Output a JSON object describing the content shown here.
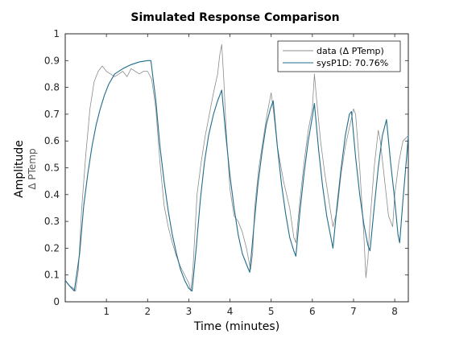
{
  "chart_data": {
    "type": "line",
    "title": "Simulated Response Comparison",
    "xlabel": "Time (minutes)",
    "ylabel": "Amplitude",
    "ylabel_unit": "Δ PTemp",
    "xlim": [
      0,
      8.33
    ],
    "ylim": [
      0,
      1
    ],
    "xticks": [
      1,
      2,
      3,
      4,
      5,
      6,
      7,
      8
    ],
    "yticks": [
      0,
      0.1,
      0.2,
      0.3,
      0.4,
      0.5,
      0.6,
      0.7,
      0.8,
      0.9,
      1
    ],
    "grid": false,
    "legend_position": "top-right",
    "colors": {
      "data": "#8c8c8c",
      "sysP1D": "#1f6d8c"
    },
    "series": [
      {
        "name": "data (Δ PTemp)",
        "points": [
          [
            0,
            0.08
          ],
          [
            0.1,
            0.06
          ],
          [
            0.2,
            0.05
          ],
          [
            0.25,
            0.04
          ],
          [
            0.32,
            0.12
          ],
          [
            0.4,
            0.35
          ],
          [
            0.5,
            0.55
          ],
          [
            0.6,
            0.72
          ],
          [
            0.7,
            0.82
          ],
          [
            0.8,
            0.86
          ],
          [
            0.9,
            0.88
          ],
          [
            1.0,
            0.86
          ],
          [
            1.1,
            0.85
          ],
          [
            1.2,
            0.84
          ],
          [
            1.3,
            0.85
          ],
          [
            1.4,
            0.86
          ],
          [
            1.5,
            0.84
          ],
          [
            1.6,
            0.87
          ],
          [
            1.7,
            0.86
          ],
          [
            1.8,
            0.85
          ],
          [
            1.9,
            0.86
          ],
          [
            2.0,
            0.86
          ],
          [
            2.1,
            0.83
          ],
          [
            2.2,
            0.72
          ],
          [
            2.3,
            0.52
          ],
          [
            2.4,
            0.36
          ],
          [
            2.5,
            0.28
          ],
          [
            2.6,
            0.22
          ],
          [
            2.7,
            0.17
          ],
          [
            2.8,
            0.13
          ],
          [
            2.9,
            0.1
          ],
          [
            3.0,
            0.07
          ],
          [
            3.05,
            0.04
          ],
          [
            3.1,
            0.12
          ],
          [
            3.2,
            0.4
          ],
          [
            3.3,
            0.52
          ],
          [
            3.4,
            0.62
          ],
          [
            3.5,
            0.7
          ],
          [
            3.6,
            0.78
          ],
          [
            3.7,
            0.85
          ],
          [
            3.75,
            0.92
          ],
          [
            3.8,
            0.96
          ],
          [
            3.85,
            0.83
          ],
          [
            3.9,
            0.66
          ],
          [
            4.0,
            0.42
          ],
          [
            4.1,
            0.32
          ],
          [
            4.2,
            0.3
          ],
          [
            4.3,
            0.26
          ],
          [
            4.4,
            0.2
          ],
          [
            4.5,
            0.12
          ],
          [
            4.55,
            0.18
          ],
          [
            4.6,
            0.35
          ],
          [
            4.7,
            0.5
          ],
          [
            4.8,
            0.6
          ],
          [
            4.9,
            0.7
          ],
          [
            5.0,
            0.78
          ],
          [
            5.05,
            0.72
          ],
          [
            5.15,
            0.58
          ],
          [
            5.3,
            0.45
          ],
          [
            5.45,
            0.35
          ],
          [
            5.55,
            0.24
          ],
          [
            5.6,
            0.22
          ],
          [
            5.7,
            0.38
          ],
          [
            5.8,
            0.52
          ],
          [
            5.9,
            0.64
          ],
          [
            6.0,
            0.72
          ],
          [
            6.05,
            0.85
          ],
          [
            6.1,
            0.76
          ],
          [
            6.2,
            0.6
          ],
          [
            6.3,
            0.48
          ],
          [
            6.4,
            0.38
          ],
          [
            6.5,
            0.28
          ],
          [
            6.6,
            0.34
          ],
          [
            6.7,
            0.48
          ],
          [
            6.8,
            0.58
          ],
          [
            6.9,
            0.65
          ],
          [
            7.0,
            0.72
          ],
          [
            7.05,
            0.7
          ],
          [
            7.15,
            0.5
          ],
          [
            7.25,
            0.25
          ],
          [
            7.3,
            0.09
          ],
          [
            7.35,
            0.16
          ],
          [
            7.4,
            0.3
          ],
          [
            7.5,
            0.5
          ],
          [
            7.6,
            0.64
          ],
          [
            7.65,
            0.6
          ],
          [
            7.75,
            0.46
          ],
          [
            7.85,
            0.32
          ],
          [
            7.95,
            0.28
          ],
          [
            8.0,
            0.4
          ],
          [
            8.1,
            0.52
          ],
          [
            8.2,
            0.6
          ],
          [
            8.33,
            0.62
          ]
        ]
      },
      {
        "name": "sysP1D: 70.76%",
        "points": [
          [
            0,
            0.08
          ],
          [
            0.1,
            0.06
          ],
          [
            0.22,
            0.04
          ],
          [
            0.35,
            0.18
          ],
          [
            0.45,
            0.36
          ],
          [
            0.55,
            0.48
          ],
          [
            0.65,
            0.58
          ],
          [
            0.75,
            0.66
          ],
          [
            0.85,
            0.72
          ],
          [
            0.95,
            0.77
          ],
          [
            1.05,
            0.81
          ],
          [
            1.2,
            0.85
          ],
          [
            1.4,
            0.87
          ],
          [
            1.6,
            0.885
          ],
          [
            1.8,
            0.895
          ],
          [
            2.0,
            0.9
          ],
          [
            2.08,
            0.9
          ],
          [
            2.2,
            0.75
          ],
          [
            2.3,
            0.58
          ],
          [
            2.4,
            0.45
          ],
          [
            2.5,
            0.34
          ],
          [
            2.6,
            0.25
          ],
          [
            2.7,
            0.18
          ],
          [
            2.8,
            0.12
          ],
          [
            2.9,
            0.08
          ],
          [
            3.0,
            0.05
          ],
          [
            3.08,
            0.04
          ],
          [
            3.18,
            0.2
          ],
          [
            3.28,
            0.38
          ],
          [
            3.38,
            0.52
          ],
          [
            3.48,
            0.62
          ],
          [
            3.6,
            0.7
          ],
          [
            3.7,
            0.75
          ],
          [
            3.8,
            0.79
          ],
          [
            3.9,
            0.62
          ],
          [
            4.0,
            0.47
          ],
          [
            4.1,
            0.35
          ],
          [
            4.2,
            0.25
          ],
          [
            4.3,
            0.18
          ],
          [
            4.4,
            0.14
          ],
          [
            4.48,
            0.11
          ],
          [
            4.58,
            0.28
          ],
          [
            4.68,
            0.44
          ],
          [
            4.78,
            0.56
          ],
          [
            4.88,
            0.66
          ],
          [
            4.98,
            0.72
          ],
          [
            5.05,
            0.75
          ],
          [
            5.15,
            0.58
          ],
          [
            5.25,
            0.44
          ],
          [
            5.35,
            0.33
          ],
          [
            5.45,
            0.24
          ],
          [
            5.55,
            0.19
          ],
          [
            5.6,
            0.17
          ],
          [
            5.7,
            0.34
          ],
          [
            5.8,
            0.48
          ],
          [
            5.9,
            0.6
          ],
          [
            6.0,
            0.69
          ],
          [
            6.05,
            0.74
          ],
          [
            6.15,
            0.57
          ],
          [
            6.25,
            0.43
          ],
          [
            6.35,
            0.32
          ],
          [
            6.45,
            0.24
          ],
          [
            6.5,
            0.2
          ],
          [
            6.6,
            0.36
          ],
          [
            6.7,
            0.5
          ],
          [
            6.8,
            0.62
          ],
          [
            6.9,
            0.7
          ],
          [
            6.95,
            0.71
          ],
          [
            7.05,
            0.54
          ],
          [
            7.15,
            0.4
          ],
          [
            7.25,
            0.29
          ],
          [
            7.35,
            0.21
          ],
          [
            7.4,
            0.19
          ],
          [
            7.5,
            0.35
          ],
          [
            7.6,
            0.5
          ],
          [
            7.7,
            0.62
          ],
          [
            7.8,
            0.68
          ],
          [
            7.9,
            0.52
          ],
          [
            8.0,
            0.38
          ],
          [
            8.08,
            0.25
          ],
          [
            8.12,
            0.22
          ],
          [
            8.2,
            0.38
          ],
          [
            8.3,
            0.56
          ],
          [
            8.33,
            0.62
          ]
        ]
      }
    ]
  }
}
